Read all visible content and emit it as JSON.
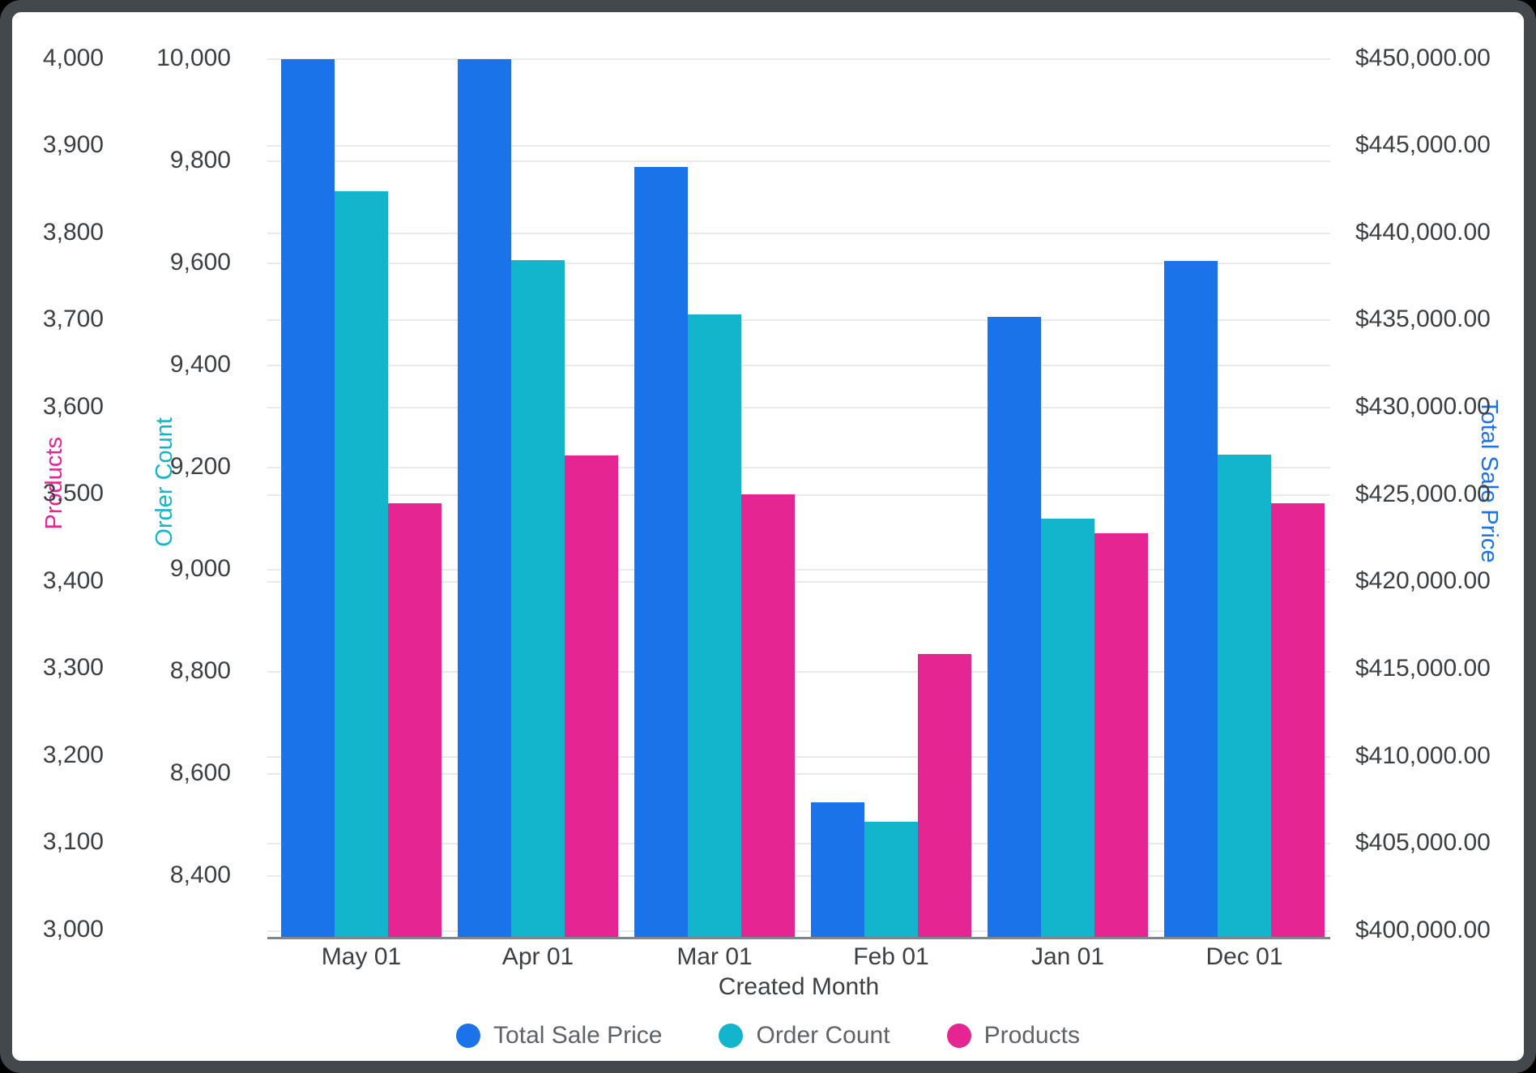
{
  "window": {
    "frame_color": "#43484d",
    "background": "#ffffff"
  },
  "chart_data": {
    "type": "bar",
    "xlabel": "Created Month",
    "categories": [
      "May 01",
      "Apr 01",
      "Mar 01",
      "Feb 01",
      "Jan 01",
      "Dec 01"
    ],
    "series": [
      {
        "name": "Total Sale Price",
        "axis": "price",
        "color": "#1A73E8",
        "values": [
          450000,
          450000,
          443800,
          407400,
          435200,
          438400
        ]
      },
      {
        "name": "Order Count",
        "axis": "orders",
        "color": "#12B5CB",
        "values": [
          9740,
          9605,
          9500,
          8505,
          9100,
          9225
        ]
      },
      {
        "name": "Products",
        "axis": "products",
        "color": "#E52592",
        "values": [
          3490,
          3545,
          3500,
          3317,
          3455,
          3490
        ]
      }
    ],
    "axes": {
      "products": {
        "title": "Products",
        "color": "#E52592",
        "side": "left-outer",
        "ticks": [
          "4,000",
          "3,900",
          "3,800",
          "3,700",
          "3,600",
          "3,500",
          "3,400",
          "3,300",
          "3,200",
          "3,100",
          "3,000"
        ],
        "range": [
          3000,
          4000
        ]
      },
      "orders": {
        "title": "Order Count",
        "color": "#12B5CB",
        "side": "left-inner",
        "ticks": [
          "10,000",
          "9,800",
          "9,600",
          "9,400",
          "9,200",
          "9,000",
          "8,800",
          "8,600",
          "8,400"
        ],
        "range": [
          8400,
          10000
        ]
      },
      "price": {
        "title": "Total Sale Price",
        "color": "#1A73E8",
        "side": "right",
        "ticks": [
          "$450,000.00",
          "$445,000.00",
          "$440,000.00",
          "$435,000.00",
          "$430,000.00",
          "$425,000.00",
          "$420,000.00",
          "$415,000.00",
          "$410,000.00",
          "$405,000.00",
          "$400,000.00"
        ],
        "range": [
          400000,
          450000
        ]
      }
    },
    "legend": {
      "position": "bottom",
      "items": [
        {
          "label": "Total Sale Price",
          "color": "#1A73E8"
        },
        {
          "label": "Order Count",
          "color": "#12B5CB"
        },
        {
          "label": "Products",
          "color": "#E52592"
        }
      ]
    },
    "grid": true
  }
}
